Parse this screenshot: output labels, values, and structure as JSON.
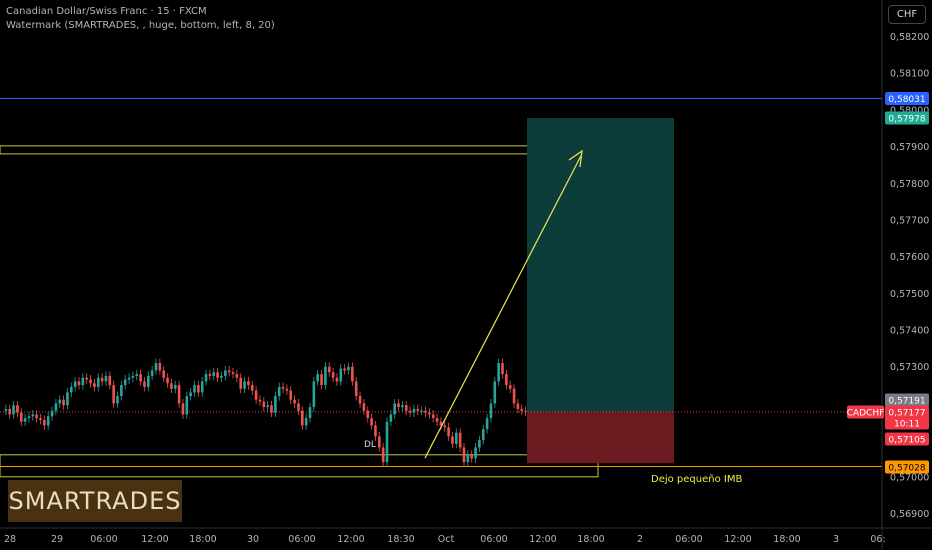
{
  "legend": {
    "symbol_line": "Canadian Dollar/Swiss Franc · 15 · FXCM",
    "indicator_line": "Watermark (SMARTRADES, , huge, bottom, left, 8, 20)"
  },
  "currency_button": "CHF",
  "watermark_text": "SMARTRADES",
  "annotation_note": "Dejo pequeño IMB",
  "bos_label": "DL",
  "chart_data": {
    "type": "candlestick",
    "title": "Canadian Dollar/Swiss Franc · 15 · FXCM",
    "ylim": [
      0.5686,
      0.5826
    ],
    "y_ticks": [
      "0,58200",
      "0,58100",
      "0,58000",
      "0,57900",
      "0,57800",
      "0,57700",
      "0,57600",
      "0,57500",
      "0,57400",
      "0,57300",
      "0,57000",
      "0,56900"
    ],
    "x_ticks": [
      "28",
      "29",
      "06:00",
      "12:00",
      "18:00",
      "30",
      "06:00",
      "12:00",
      "18:30",
      "Oct",
      "06:00",
      "12:00",
      "18:00",
      "2",
      "06:00",
      "12:00",
      "18:00",
      "3",
      "06:"
    ],
    "price_tags": [
      {
        "label": "0,58031",
        "value": 0.58031,
        "color": "#2962ff",
        "text_color": "#ffffff"
      },
      {
        "label": "0,57978",
        "value": 0.57978,
        "color": "#22ab94",
        "text_color": "#ffffff"
      },
      {
        "label": "0,57191",
        "value": 0.57191,
        "color": "#787b86",
        "text_color": "#ffffff"
      },
      {
        "label": "CADCHF",
        "value": 0.57177,
        "color": "#f23645",
        "text_color": "#ffffff"
      },
      {
        "label": "0,57177",
        "value": 0.57177,
        "color": "#f23645",
        "text_color": "#ffffff"
      },
      {
        "label": "10:11",
        "value": 0.57155,
        "color": "#f23645",
        "text_color": "#ffffff"
      },
      {
        "label": "0,57105",
        "value": 0.57105,
        "color": "#f23645",
        "text_color": "#ffffff"
      },
      {
        "label": "0,57028",
        "value": 0.57028,
        "color": "#ff9800",
        "text_color": "#000000"
      }
    ],
    "horizontal_lines": [
      {
        "value": 0.58031,
        "color": "#2962ff"
      },
      {
        "value": 0.57028,
        "color": "#ff9800"
      }
    ],
    "zones": [
      {
        "name": "upper-zone",
        "from_value": 0.57902,
        "to_value": 0.5788,
        "color": "#f0e94e"
      },
      {
        "name": "lower-zone",
        "from_value": 0.5706,
        "to_value": 0.57,
        "color": "#f0e94e"
      }
    ],
    "position": {
      "type": "long",
      "entry": 0.57177,
      "target": 0.57978,
      "stop": 0.57105,
      "profit_color": "#0d3d3b",
      "loss_color": "#6b1a1f"
    },
    "arrow": {
      "from_value": 0.57051,
      "to_value": 0.57875,
      "color": "#f0e94e"
    },
    "price_series": [
      0.5718,
      0.57185,
      0.5717,
      0.57195,
      0.57175,
      0.5715,
      0.5716,
      0.57165,
      0.5717,
      0.5716,
      0.57155,
      0.5714,
      0.57165,
      0.5718,
      0.572,
      0.5721,
      0.57195,
      0.5723,
      0.57245,
      0.5726,
      0.5725,
      0.5727,
      0.57265,
      0.57255,
      0.57245,
      0.5727,
      0.5726,
      0.57275,
      0.5725,
      0.572,
      0.5722,
      0.5725,
      0.57265,
      0.5727,
      0.57275,
      0.5728,
      0.5726,
      0.57245,
      0.57275,
      0.5729,
      0.5731,
      0.5729,
      0.5727,
      0.57255,
      0.5724,
      0.5725,
      0.572,
      0.5717,
      0.5722,
      0.5723,
      0.5725,
      0.5723,
      0.5726,
      0.5728,
      0.57275,
      0.57285,
      0.5727,
      0.57275,
      0.5729,
      0.57285,
      0.5728,
      0.5727,
      0.5724,
      0.5726,
      0.5725,
      0.57235,
      0.5721,
      0.57205,
      0.5719,
      0.57195,
      0.57175,
      0.5722,
      0.57245,
      0.5724,
      0.57235,
      0.5721,
      0.572,
      0.5718,
      0.5714,
      0.5716,
      0.5719,
      0.5726,
      0.5728,
      0.5725,
      0.573,
      0.57285,
      0.5727,
      0.5726,
      0.57295,
      0.5729,
      0.573,
      0.5726,
      0.5722,
      0.572,
      0.5718,
      0.5716,
      0.5714,
      0.5711,
      0.5708,
      0.5704,
      0.5715,
      0.5717,
      0.572,
      0.5719,
      0.57195,
      0.5718,
      0.57175,
      0.57185,
      0.5718,
      0.5718,
      0.57175,
      0.5717,
      0.5716,
      0.5715,
      0.5714,
      0.57135,
      0.5711,
      0.5709,
      0.5712,
      0.5708,
      0.5704,
      0.5706,
      0.5705,
      0.5708,
      0.571,
      0.5713,
      0.5716,
      0.572,
      0.5726,
      0.5731,
      0.5728,
      0.5725,
      0.5724,
      0.572,
      0.57185,
      0.5718,
      0.57177
    ]
  }
}
